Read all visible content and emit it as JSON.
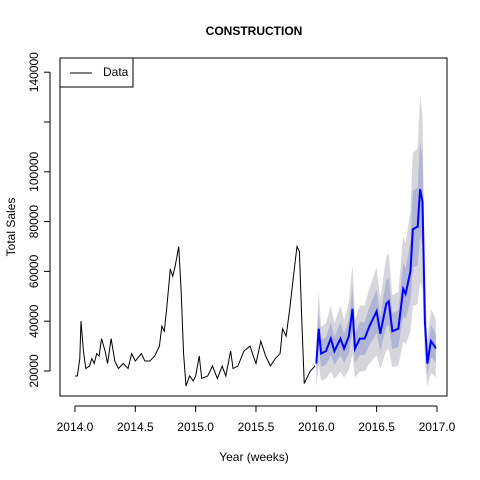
{
  "chart_data": {
    "type": "line",
    "title": "CONSTRUCTION",
    "xlabel": "Year (weeks)",
    "ylabel": "Total Sales",
    "xlim": [
      2013.876,
      2017.083
    ],
    "ylim": [
      9960,
      145700
    ],
    "xticks": [
      {
        "value": 2014,
        "label": "2014.0"
      },
      2014.5,
      {
        "value": 2015,
        "label": "2015.0"
      },
      2015.5,
      {
        "value": 2016,
        "label": "2016.0"
      },
      2016.5,
      {
        "value": 2017,
        "label": "2017.0"
      }
    ],
    "yticks": [
      20000,
      40000,
      60000,
      80000,
      100000,
      {
        "value": 120000,
        "label": null
      },
      140000
    ],
    "legend": "top-left",
    "interval_colors": {
      "95": "#d6d6dc",
      "80": "#b1b5d6"
    },
    "series": [
      {
        "name": "Data",
        "color": "#000000",
        "x": [
          2014.0,
          2014.02,
          2014.04,
          2014.05,
          2014.07,
          2014.09,
          2014.12,
          2014.14,
          2014.16,
          2014.18,
          2014.2,
          2014.22,
          2014.25,
          2014.27,
          2014.3,
          2014.33,
          2014.36,
          2014.4,
          2014.44,
          2014.47,
          2014.5,
          2014.55,
          2014.58,
          2014.62,
          2014.66,
          2014.7,
          2014.72,
          2014.74,
          2014.76,
          2014.79,
          2014.81,
          2014.83,
          2014.86,
          2014.88,
          2014.9,
          2014.92,
          2014.95,
          2014.98,
          2015.0,
          2015.03,
          2015.05,
          2015.1,
          2015.14,
          2015.18,
          2015.22,
          2015.25,
          2015.29,
          2015.31,
          2015.35,
          2015.4,
          2015.45,
          2015.5,
          2015.54,
          2015.58,
          2015.62,
          2015.66,
          2015.7,
          2015.72,
          2015.75,
          2015.78,
          2015.82,
          2015.84,
          2015.86,
          2015.88,
          2015.9,
          2015.95,
          2015.99
        ],
        "values": [
          18000,
          18000,
          25000,
          40000,
          28000,
          21000,
          22000,
          25000,
          23000,
          27000,
          26000,
          33000,
          28000,
          23000,
          33000,
          24000,
          21000,
          23000,
          21000,
          27000,
          24000,
          27000,
          24000,
          24000,
          26000,
          30000,
          38000,
          36000,
          45000,
          61000,
          58000,
          62000,
          70000,
          52000,
          27000,
          14000,
          18000,
          16000,
          18000,
          26000,
          17000,
          18000,
          22000,
          17000,
          22000,
          18000,
          28000,
          21000,
          22000,
          28000,
          30000,
          23000,
          32000,
          26000,
          22000,
          25000,
          27000,
          37000,
          34000,
          45000,
          62000,
          70000,
          68000,
          40000,
          15000,
          20000,
          22000
        ]
      },
      {
        "color": "#0000ff",
        "x": [
          2016.0,
          2016.02,
          2016.04,
          2016.08,
          2016.12,
          2016.15,
          2016.2,
          2016.23,
          2016.27,
          2016.3,
          2016.32,
          2016.36,
          2016.4,
          2016.44,
          2016.5,
          2016.53,
          2016.58,
          2016.6,
          2016.63,
          2016.68,
          2016.72,
          2016.74,
          2016.78,
          2016.8,
          2016.84,
          2016.86,
          2016.88,
          2016.9,
          2016.92,
          2016.95,
          2016.98,
          2016.99
        ],
        "values": [
          23000,
          37000,
          27000,
          28000,
          33000,
          28000,
          33000,
          29000,
          34000,
          45000,
          29000,
          33000,
          33000,
          38000,
          44000,
          35000,
          47000,
          48000,
          36000,
          37000,
          53000,
          51000,
          60000,
          77000,
          78000,
          93000,
          88000,
          40000,
          23000,
          32000,
          30000,
          29000
        ],
        "lower80": [
          18400,
          29600,
          21600,
          22400,
          26400,
          22400,
          26400,
          23200,
          27200,
          36000,
          23200,
          26400,
          26400,
          30400,
          35200,
          28000,
          37600,
          38400,
          28800,
          29600,
          42400,
          40800,
          48000,
          61600,
          62400,
          74400,
          70400,
          32000,
          18400,
          25600,
          24000,
          23200
        ],
        "upper80": [
          27600,
          44400,
          32400,
          33600,
          39600,
          33600,
          39600,
          34800,
          40800,
          54000,
          34800,
          39600,
          39600,
          45600,
          52800,
          42000,
          56400,
          57600,
          43200,
          44400,
          63600,
          61200,
          72000,
          92400,
          93600,
          111600,
          105600,
          48000,
          27600,
          38400,
          36000,
          34800
        ],
        "lower95": [
          13800,
          22200,
          16200,
          16800,
          19800,
          16800,
          19800,
          17400,
          20400,
          27000,
          17400,
          19800,
          19800,
          22800,
          26400,
          21000,
          28200,
          28800,
          21600,
          22200,
          31800,
          30600,
          36000,
          46200,
          46800,
          55800,
          52800,
          24000,
          13800,
          19200,
          18000,
          17400
        ],
        "upper95": [
          32200,
          51800,
          37800,
          39200,
          46200,
          39200,
          46200,
          40600,
          47600,
          63000,
          40600,
          46200,
          46200,
          53200,
          61600,
          49000,
          65800,
          67200,
          50400,
          51800,
          74200,
          71400,
          84000,
          107800,
          109200,
          130200,
          123200,
          56000,
          32200,
          44800,
          42000,
          40600
        ]
      }
    ]
  }
}
